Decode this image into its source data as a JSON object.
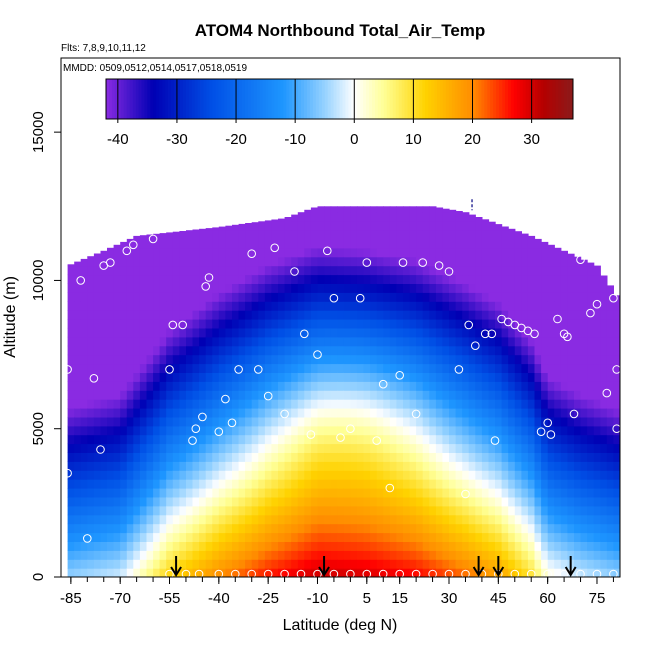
{
  "chart_data": {
    "type": "heatmap",
    "title": "ATOM4 Northbound Total_Air_Temp",
    "subtitle_flights": "Flts: 7,8,9,10,11,12",
    "subtitle_dates": "MMDD: 0509,0512,0514,0517,0518,0519",
    "xlabel": "Latitude (deg N)",
    "ylabel": "Altitude (m)",
    "xlim": [
      -88,
      82
    ],
    "ylim": [
      0,
      17500
    ],
    "x_tick_labels": [
      "-85",
      "-70",
      "-55",
      "-40",
      "-25",
      "-10",
      "5",
      "15",
      "30",
      "45",
      "60",
      "75"
    ],
    "x_tick_values": [
      -85,
      -70,
      -55,
      -40,
      -25,
      -10,
      5,
      15,
      30,
      45,
      60,
      75
    ],
    "y_tick_labels": [
      "0",
      "5000",
      "10000",
      "15000"
    ],
    "y_tick_values": [
      0,
      5000,
      10000,
      15000
    ],
    "colorbar": {
      "min": -42,
      "max": 37,
      "tick_labels": [
        "-40",
        "-30",
        "-20",
        "-10",
        "0",
        "10",
        "20",
        "30"
      ],
      "tick_values": [
        -40,
        -30,
        -20,
        -10,
        0,
        10,
        20,
        30
      ],
      "colors": [
        "#8a2be2",
        "#0000b4",
        "#0050e6",
        "#1e96ff",
        "#96d2ff",
        "#ffffff",
        "#ffff96",
        "#ffd200",
        "#ff8c00",
        "#ff0000",
        "#b40000",
        "#8b1a1a"
      ],
      "color_stops": [
        -42,
        -34,
        -24,
        -12,
        -5,
        0,
        5,
        12,
        20,
        27,
        32,
        37
      ]
    },
    "field_description": "Temperature decreases with altitude; warmest near surface in tropics (~30 C), coldest aloft (~-40 C)",
    "field": {
      "lat_bounds": [
        -86,
        81
      ],
      "surface_temp_by_lat": [
        [
          -86,
          -5
        ],
        [
          -70,
          -2
        ],
        [
          -55,
          12
        ],
        [
          -40,
          20
        ],
        [
          -25,
          26
        ],
        [
          -10,
          30
        ],
        [
          5,
          29
        ],
        [
          20,
          27
        ],
        [
          35,
          22
        ],
        [
          45,
          18
        ],
        [
          55,
          10
        ],
        [
          60,
          2
        ],
        [
          70,
          -2
        ],
        [
          81,
          -5
        ]
      ],
      "top_altitude_by_lat": [
        [
          -86,
          10500
        ],
        [
          -75,
          11000
        ],
        [
          -65,
          11500
        ],
        [
          -40,
          11800
        ],
        [
          -20,
          12100
        ],
        [
          -10,
          12500
        ],
        [
          25,
          12500
        ],
        [
          35,
          12300
        ],
        [
          45,
          11900
        ],
        [
          55,
          11500
        ],
        [
          65,
          11000
        ],
        [
          75,
          10500
        ],
        [
          81,
          9500
        ]
      ],
      "lapse_rate_c_per_km": 6.5
    },
    "observation_points": [
      [
        -86,
        3500
      ],
      [
        -86,
        7000
      ],
      [
        -82,
        10000
      ],
      [
        -80,
        1300
      ],
      [
        -78,
        6700
      ],
      [
        -76,
        4300
      ],
      [
        -75,
        10500
      ],
      [
        -73,
        10600
      ],
      [
        -68,
        11000
      ],
      [
        -66,
        11200
      ],
      [
        -60,
        11400
      ],
      [
        -55,
        7000
      ],
      [
        -54,
        8500
      ],
      [
        -51,
        8500
      ],
      [
        -48,
        4600
      ],
      [
        -47,
        5000
      ],
      [
        -45,
        5400
      ],
      [
        -44,
        9800
      ],
      [
        -43,
        10100
      ],
      [
        -40,
        4900
      ],
      [
        -38,
        6000
      ],
      [
        -36,
        5200
      ],
      [
        -34,
        7000
      ],
      [
        -30,
        10900
      ],
      [
        -28,
        7000
      ],
      [
        -25,
        6100
      ],
      [
        -23,
        11100
      ],
      [
        -20,
        5500
      ],
      [
        -17,
        10300
      ],
      [
        -14,
        8200
      ],
      [
        -12,
        4800
      ],
      [
        -10,
        7500
      ],
      [
        -7,
        11000
      ],
      [
        -5,
        9400
      ],
      [
        -3,
        4700
      ],
      [
        0,
        5000
      ],
      [
        3,
        9400
      ],
      [
        5,
        10600
      ],
      [
        8,
        4600
      ],
      [
        10,
        6500
      ],
      [
        12,
        3000
      ],
      [
        15,
        6800
      ],
      [
        16,
        10600
      ],
      [
        20,
        5500
      ],
      [
        22,
        10600
      ],
      [
        27,
        10500
      ],
      [
        30,
        10300
      ],
      [
        33,
        7000
      ],
      [
        35,
        2800
      ],
      [
        36,
        8500
      ],
      [
        38,
        7800
      ],
      [
        41,
        8200
      ],
      [
        43,
        8200
      ],
      [
        44,
        4600
      ],
      [
        46,
        8700
      ],
      [
        48,
        8600
      ],
      [
        50,
        8500
      ],
      [
        52,
        8400
      ],
      [
        54,
        8300
      ],
      [
        56,
        8200
      ],
      [
        58,
        4900
      ],
      [
        60,
        5200
      ],
      [
        61,
        4800
      ],
      [
        63,
        8700
      ],
      [
        65,
        8200
      ],
      [
        66,
        8100
      ],
      [
        68,
        5500
      ],
      [
        70,
        10700
      ],
      [
        72,
        10900
      ],
      [
        73,
        8900
      ],
      [
        75,
        9200
      ],
      [
        77,
        10800
      ],
      [
        78,
        6200
      ],
      [
        80,
        9400
      ],
      [
        81,
        7000
      ],
      [
        81,
        5000
      ],
      [
        -55,
        100
      ],
      [
        -50,
        100
      ],
      [
        -46,
        100
      ],
      [
        -40,
        100
      ],
      [
        -35,
        100
      ],
      [
        -30,
        100
      ],
      [
        -25,
        100
      ],
      [
        -20,
        100
      ],
      [
        -15,
        100
      ],
      [
        -10,
        100
      ],
      [
        -5,
        100
      ],
      [
        0,
        100
      ],
      [
        5,
        100
      ],
      [
        10,
        100
      ],
      [
        15,
        100
      ],
      [
        20,
        100
      ],
      [
        25,
        100
      ],
      [
        30,
        100
      ],
      [
        35,
        100
      ],
      [
        40,
        100
      ],
      [
        45,
        100
      ],
      [
        50,
        100
      ],
      [
        55,
        100
      ],
      [
        60,
        100
      ],
      [
        65,
        100
      ],
      [
        70,
        100
      ],
      [
        75,
        100
      ],
      [
        80,
        100
      ]
    ],
    "arrow_latitudes": [
      -53,
      -8,
      39,
      45,
      67
    ],
    "dash_marker": {
      "lat": 37,
      "alt": 12500
    }
  }
}
